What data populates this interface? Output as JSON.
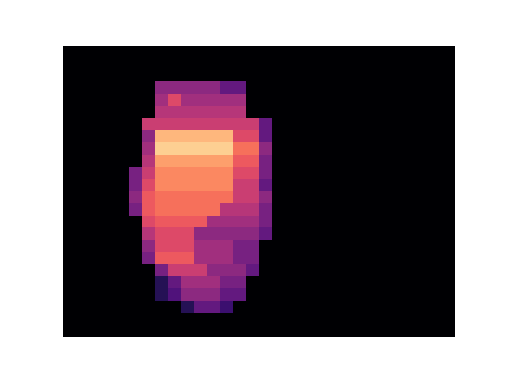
{
  "chart_data": {
    "type": "heatmap",
    "color": "magma",
    "tick_labels": false,
    "clim": [
      0,
      1
    ],
    "cells": [
      [
        0,
        0,
        0,
        0,
        0,
        0,
        0,
        0,
        0,
        0,
        0,
        0,
        0,
        0,
        0,
        0,
        0,
        0,
        0,
        0,
        0,
        0,
        0,
        0,
        0,
        0,
        0,
        0,
        0,
        0
      ],
      [
        0,
        0,
        0,
        0,
        0,
        0,
        0,
        0,
        0,
        0,
        0,
        0,
        0,
        0,
        0,
        0,
        0,
        0,
        0,
        0,
        0,
        0,
        0,
        0,
        0,
        0,
        0,
        0,
        0,
        0
      ],
      [
        0,
        0,
        0,
        0,
        0,
        0,
        0,
        0,
        0,
        0,
        0,
        0,
        0,
        0,
        0,
        0,
        0,
        0,
        0,
        0,
        0,
        0,
        0,
        0,
        0,
        0,
        0,
        0,
        0,
        0
      ],
      [
        0,
        0,
        0,
        0,
        0,
        0,
        0,
        0.4,
        0.4,
        0.4,
        0.4,
        0.4,
        0.3,
        0.3,
        0,
        0,
        0,
        0,
        0,
        0,
        0,
        0,
        0,
        0,
        0,
        0,
        0,
        0,
        0,
        0
      ],
      [
        0,
        0,
        0,
        0,
        0,
        0,
        0,
        0.45,
        0.6,
        0.45,
        0.45,
        0.45,
        0.45,
        0.45,
        0,
        0,
        0,
        0,
        0,
        0,
        0,
        0,
        0,
        0,
        0,
        0,
        0,
        0,
        0,
        0
      ],
      [
        0,
        0,
        0,
        0,
        0,
        0,
        0,
        0.5,
        0.5,
        0.5,
        0.5,
        0.5,
        0.5,
        0.5,
        0,
        0,
        0,
        0,
        0,
        0,
        0,
        0,
        0,
        0,
        0,
        0,
        0,
        0,
        0,
        0
      ],
      [
        0,
        0,
        0,
        0,
        0,
        0,
        0.55,
        0.55,
        0.55,
        0.55,
        0.55,
        0.55,
        0.55,
        0.55,
        0.55,
        0.3,
        0,
        0,
        0,
        0,
        0,
        0,
        0,
        0,
        0,
        0,
        0,
        0,
        0,
        0
      ],
      [
        0,
        0,
        0,
        0,
        0,
        0,
        0.4,
        0.85,
        0.85,
        0.85,
        0.85,
        0.85,
        0.85,
        0.6,
        0.6,
        0.3,
        0,
        0,
        0,
        0,
        0,
        0,
        0,
        0,
        0,
        0,
        0,
        0,
        0,
        0
      ],
      [
        0,
        0,
        0,
        0,
        0,
        0,
        0.45,
        0.9,
        0.9,
        0.9,
        0.9,
        0.9,
        0.9,
        0.7,
        0.7,
        0.4,
        0,
        0,
        0,
        0,
        0,
        0,
        0,
        0,
        0,
        0,
        0,
        0,
        0,
        0
      ],
      [
        0,
        0,
        0,
        0,
        0,
        0,
        0.5,
        0.8,
        0.8,
        0.8,
        0.8,
        0.8,
        0.8,
        0.65,
        0.65,
        0.35,
        0,
        0,
        0,
        0,
        0,
        0,
        0,
        0,
        0,
        0,
        0,
        0,
        0,
        0
      ],
      [
        0,
        0,
        0,
        0,
        0,
        0.35,
        0.55,
        0.75,
        0.75,
        0.75,
        0.75,
        0.75,
        0.75,
        0.6,
        0.6,
        0.35,
        0,
        0,
        0,
        0,
        0,
        0,
        0,
        0,
        0,
        0,
        0,
        0,
        0,
        0
      ],
      [
        0,
        0,
        0,
        0,
        0,
        0.35,
        0.6,
        0.75,
        0.75,
        0.75,
        0.75,
        0.75,
        0.75,
        0.55,
        0.55,
        0.3,
        0,
        0,
        0,
        0,
        0,
        0,
        0,
        0,
        0,
        0,
        0,
        0,
        0,
        0
      ],
      [
        0,
        0,
        0,
        0,
        0,
        0.4,
        0.65,
        0.7,
        0.7,
        0.7,
        0.7,
        0.7,
        0.7,
        0.55,
        0.55,
        0.4,
        0,
        0,
        0,
        0,
        0,
        0,
        0,
        0,
        0,
        0,
        0,
        0,
        0,
        0
      ],
      [
        0,
        0,
        0,
        0,
        0,
        0.35,
        0.65,
        0.7,
        0.7,
        0.7,
        0.7,
        0.7,
        0.5,
        0.5,
        0.5,
        0.35,
        0,
        0,
        0,
        0,
        0,
        0,
        0,
        0,
        0,
        0,
        0,
        0,
        0,
        0
      ],
      [
        0,
        0,
        0,
        0,
        0,
        0,
        0.6,
        0.65,
        0.65,
        0.65,
        0.65,
        0.45,
        0.45,
        0.45,
        0.45,
        0.35,
        0,
        0,
        0,
        0,
        0,
        0,
        0,
        0,
        0,
        0,
        0,
        0,
        0,
        0
      ],
      [
        0,
        0,
        0,
        0,
        0,
        0,
        0.5,
        0.6,
        0.6,
        0.6,
        0.4,
        0.4,
        0.4,
        0.4,
        0.4,
        0.3,
        0,
        0,
        0,
        0,
        0,
        0,
        0,
        0,
        0,
        0,
        0,
        0,
        0,
        0
      ],
      [
        0,
        0,
        0,
        0,
        0,
        0,
        0.4,
        0.6,
        0.6,
        0.6,
        0.45,
        0.45,
        0.45,
        0.35,
        0.35,
        0,
        0,
        0,
        0,
        0,
        0,
        0,
        0,
        0,
        0,
        0,
        0,
        0,
        0,
        0
      ],
      [
        0,
        0,
        0,
        0,
        0,
        0,
        0.35,
        0.65,
        0.65,
        0.65,
        0.45,
        0.45,
        0.45,
        0.35,
        0.35,
        0,
        0,
        0,
        0,
        0,
        0,
        0,
        0,
        0,
        0,
        0,
        0,
        0,
        0,
        0
      ],
      [
        0,
        0,
        0,
        0,
        0,
        0,
        0,
        0.35,
        0.55,
        0.55,
        0.55,
        0.4,
        0.4,
        0.4,
        0.3,
        0,
        0,
        0,
        0,
        0,
        0,
        0,
        0,
        0,
        0,
        0,
        0,
        0,
        0,
        0
      ],
      [
        0,
        0,
        0,
        0,
        0,
        0,
        0,
        0.15,
        0.3,
        0.45,
        0.45,
        0.45,
        0.35,
        0.35,
        0,
        0,
        0,
        0,
        0,
        0,
        0,
        0,
        0,
        0,
        0,
        0,
        0,
        0,
        0,
        0
      ],
      [
        0,
        0,
        0,
        0,
        0,
        0,
        0,
        0.15,
        0.25,
        0.4,
        0.4,
        0.4,
        0.3,
        0.3,
        0,
        0,
        0,
        0,
        0,
        0,
        0,
        0,
        0,
        0,
        0,
        0,
        0,
        0,
        0,
        0
      ],
      [
        0,
        0,
        0,
        0,
        0,
        0,
        0,
        0,
        0,
        0.15,
        0.3,
        0.3,
        0.2,
        0,
        0,
        0,
        0,
        0,
        0,
        0,
        0,
        0,
        0,
        0,
        0,
        0,
        0,
        0,
        0,
        0
      ],
      [
        0,
        0,
        0,
        0,
        0,
        0,
        0,
        0,
        0,
        0,
        0,
        0,
        0,
        0,
        0,
        0,
        0,
        0,
        0,
        0,
        0,
        0,
        0,
        0,
        0,
        0,
        0,
        0,
        0,
        0
      ],
      [
        0,
        0,
        0,
        0,
        0,
        0,
        0,
        0,
        0,
        0,
        0,
        0,
        0,
        0,
        0,
        0,
        0,
        0,
        0,
        0,
        0,
        0,
        0,
        0,
        0,
        0,
        0,
        0,
        0,
        0
      ]
    ]
  }
}
